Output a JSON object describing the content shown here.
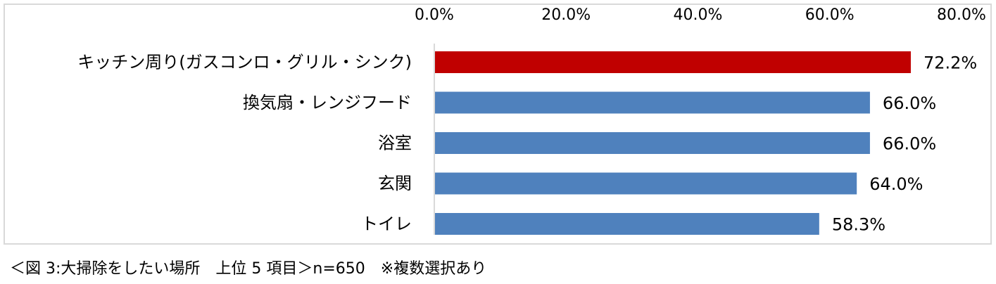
{
  "chart_data": {
    "type": "bar",
    "orientation": "horizontal",
    "categories": [
      "キッチン周り(ガスコンロ・グリル・シンク)",
      "換気扇・レンジフード",
      "浴室",
      "玄関",
      "トイレ"
    ],
    "values": [
      72.2,
      66.0,
      66.0,
      64.0,
      58.3
    ],
    "data_labels": [
      "72.2%",
      "66.0%",
      "66.0%",
      "64.0%",
      "58.3%"
    ],
    "xlim": [
      0,
      80
    ],
    "x_ticks": [
      0,
      20,
      40,
      60,
      80
    ],
    "x_tick_labels": [
      "0.0%",
      "20.0%",
      "40.0%",
      "60.0%",
      "80.0%"
    ],
    "x_axis_position": "top",
    "grid": false,
    "legend": false,
    "bar_colors": [
      "#c00000",
      "#4f81bd",
      "#4f81bd",
      "#4f81bd",
      "#4f81bd"
    ],
    "axis_color": "#d9d9d9",
    "frame_color": "#d9d9d9"
  },
  "caption": "＜図 3:大掃除をしたい場所　上位 5 項目＞n=650　※複数選択あり"
}
